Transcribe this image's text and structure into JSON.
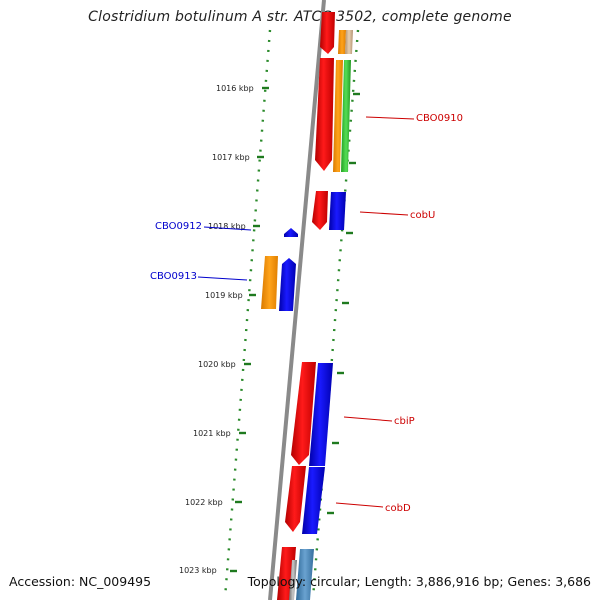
{
  "title": "Clostridium botulinum A str. ATCC 3502, complete genome",
  "footer": {
    "accession": "Accession: NC_009495",
    "summary": "Topology: circular; Length: 3,886,916 bp; Genes: 3,686"
  },
  "ticks": [
    "1016 kbp",
    "1017 kbp",
    "1018 kbp",
    "1019 kbp",
    "1020 kbp",
    "1021 kbp",
    "1022 kbp",
    "1023 kbp"
  ],
  "genes": [
    {
      "label": "CBO0910",
      "color": "#cc0000"
    },
    {
      "label": "cobU",
      "color": "#cc0000"
    },
    {
      "label": "CBO0912",
      "color": "#0000cc"
    },
    {
      "label": "CBO0913",
      "color": "#0000cc"
    },
    {
      "label": "cbiP",
      "color": "#cc0000"
    },
    {
      "label": "cobD",
      "color": "#cc0000"
    }
  ],
  "colors": {
    "backbone": "#8a8a8a",
    "ruler": "#2a8a2a",
    "red": "#ff0000",
    "blue": "#0000ff",
    "orange": "#ff9900",
    "green": "#33cc33",
    "steel": "#4a86b8"
  }
}
